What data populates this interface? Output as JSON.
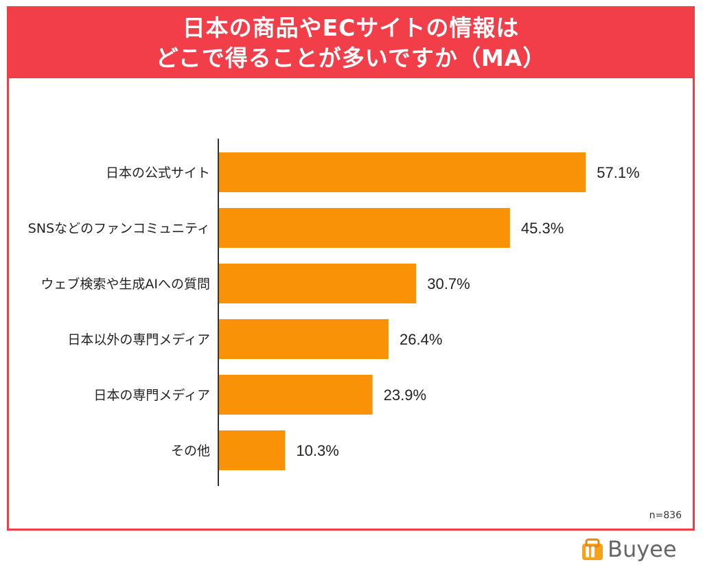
{
  "chart_data": {
    "type": "bar",
    "orientation": "horizontal",
    "title_lines": [
      "日本の商品やECサイトの情報は",
      "どこで得ることが多いですか（MA）"
    ],
    "categories": [
      "日本の公式サイト",
      "SNSなどのファンコミュニティ",
      "ウェブ検索や生成AIへの質問",
      "日本以外の専門メディア",
      "日本の専門メディア",
      "その他"
    ],
    "values": [
      57.1,
      45.3,
      30.7,
      26.4,
      23.9,
      10.3
    ],
    "value_labels": [
      "57.1%",
      "45.3%",
      "30.7%",
      "26.4%",
      "23.9%",
      "10.3%"
    ],
    "xlim": [
      0,
      70
    ],
    "grid": false,
    "note": "n=836"
  },
  "colors": {
    "bar": "#fa9208",
    "banner": "#f13e49",
    "border": "#ee3f47"
  },
  "logo": {
    "text": "Buyee",
    "icon": "shopping-bag-icon"
  }
}
